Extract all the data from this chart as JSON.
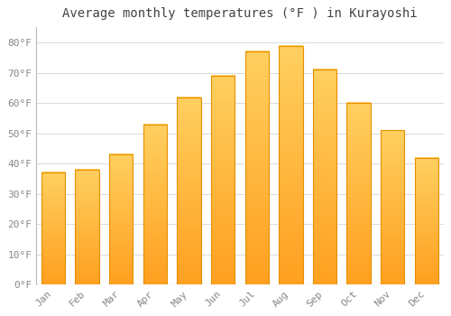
{
  "title": "Average monthly temperatures (°F ) in Kurayoshi",
  "months": [
    "Jan",
    "Feb",
    "Mar",
    "Apr",
    "May",
    "Jun",
    "Jul",
    "Aug",
    "Sep",
    "Oct",
    "Nov",
    "Dec"
  ],
  "values": [
    37,
    38,
    43,
    53,
    62,
    69,
    77,
    79,
    71,
    60,
    51,
    42
  ],
  "bar_color_top": "#FFD060",
  "bar_color_bottom": "#FFA020",
  "bar_edge_color": "#E89000",
  "background_color": "#FFFFFF",
  "plot_bg_color": "#FFFFFF",
  "grid_color": "#DDDDDD",
  "ylim": [
    0,
    85
  ],
  "yticks": [
    0,
    10,
    20,
    30,
    40,
    50,
    60,
    70,
    80
  ],
  "ytick_labels": [
    "0°F",
    "10°F",
    "20°F",
    "30°F",
    "40°F",
    "50°F",
    "60°F",
    "70°F",
    "80°F"
  ],
  "title_fontsize": 10,
  "tick_fontsize": 8,
  "tick_color": "#888888",
  "title_color": "#444444",
  "font_family": "monospace",
  "bar_width": 0.7
}
